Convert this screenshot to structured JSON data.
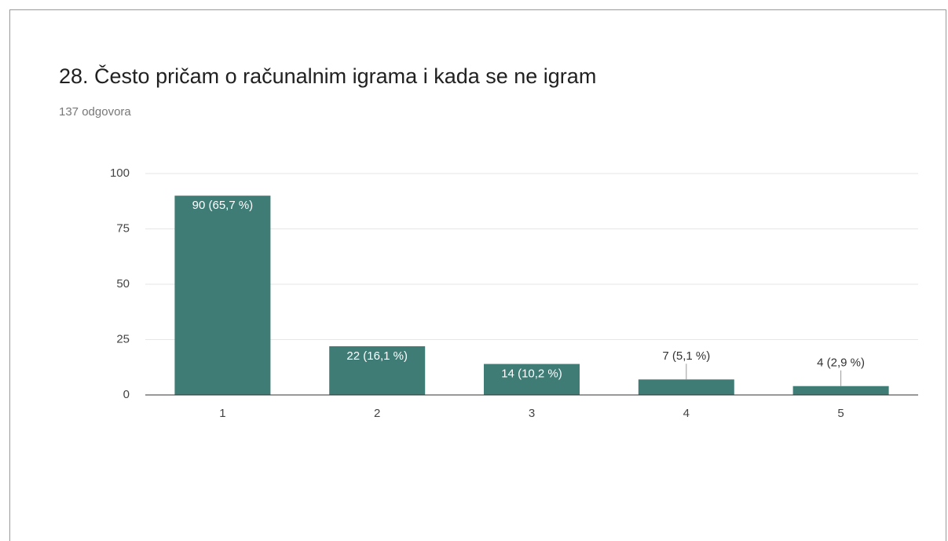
{
  "chart_data": {
    "type": "bar",
    "title": "28. Često pričam o računalnim igrama i kada se ne igram",
    "subtitle": "137 odgovora",
    "categories": [
      "1",
      "2",
      "3",
      "4",
      "5"
    ],
    "values": [
      90,
      22,
      14,
      7,
      4
    ],
    "value_labels": [
      "90 (65,7 %)",
      "22 (16,1 %)",
      "14 (10,2 %)",
      "7 (5,1 %)",
      "4 (2,9 %)"
    ],
    "color": "#3f7c76",
    "ylim": [
      0,
      100
    ],
    "yticks": [
      0,
      25,
      50,
      75,
      100
    ],
    "grid": true
  }
}
